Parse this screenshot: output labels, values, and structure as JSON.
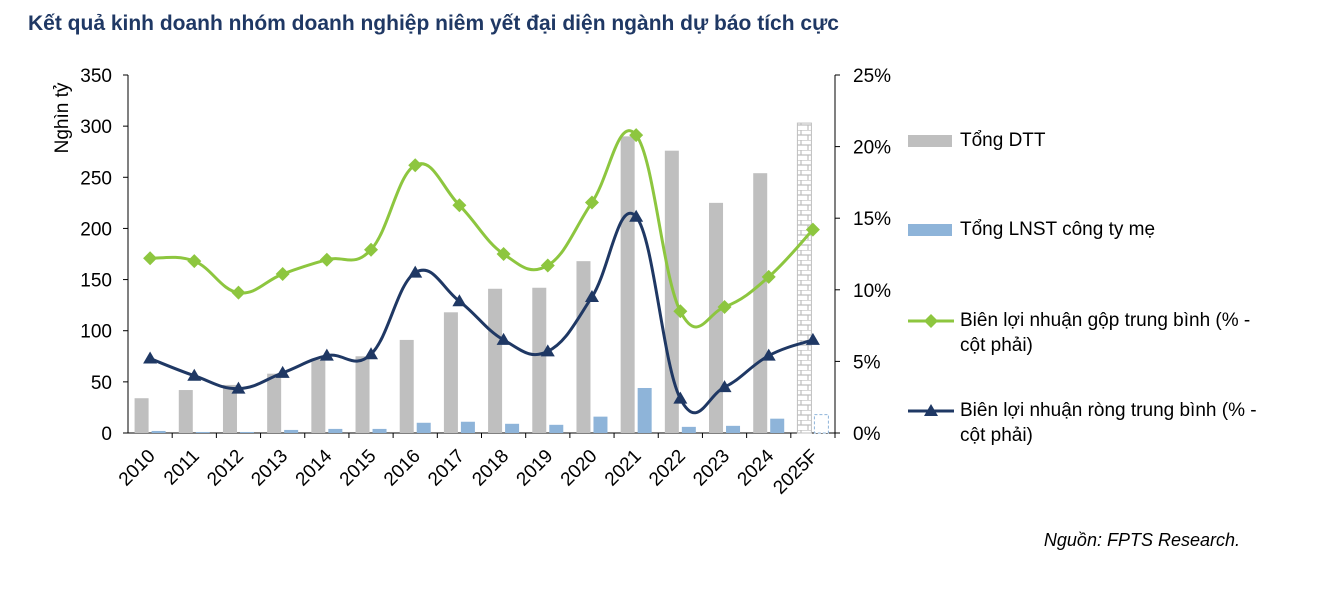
{
  "chart_data": {
    "type": "bar-line",
    "title": "Kết quả kinh doanh nhóm doanh nghiệp niêm yết đại diện ngành dự báo tích cực",
    "source": "Nguồn: FPTS Research.",
    "y_label": "Nghìn tỷ",
    "categories": [
      "2010",
      "2011",
      "2012",
      "2013",
      "2014",
      "2015",
      "2016",
      "2017",
      "2018",
      "2019",
      "2020",
      "2021",
      "2022",
      "2023",
      "2024",
      "2025F"
    ],
    "ylim": [
      0,
      350
    ],
    "yticks": [
      0,
      50,
      100,
      150,
      200,
      250,
      300,
      350
    ],
    "y2lim": [
      0,
      25
    ],
    "y2ticks": [
      {
        "value": 0,
        "label": "0%"
      },
      {
        "value": 5,
        "label": "5%"
      },
      {
        "value": 10,
        "label": "10%"
      },
      {
        "value": 15,
        "label": "15%"
      },
      {
        "value": 20,
        "label": "20%"
      },
      {
        "value": 25,
        "label": "25%"
      }
    ],
    "series": [
      {
        "name": "Tổng DTT",
        "kind": "bar",
        "color": "#bfbfbf",
        "values": [
          34,
          42,
          47,
          58,
          72,
          75,
          91,
          118,
          141,
          142,
          168,
          290,
          276,
          225,
          254,
          303
        ]
      },
      {
        "name": "Tổng LNST công ty mẹ",
        "kind": "bar",
        "color": "#8eb4d9",
        "values": [
          2,
          1,
          1,
          3,
          4,
          4,
          10,
          11,
          9,
          8,
          16,
          44,
          6,
          7,
          14,
          18
        ]
      },
      {
        "name": "Biên lợi nhuận gộp trung bình (% - cột phải)",
        "kind": "line",
        "marker": "diamond",
        "axis": "y2",
        "color": "#8dc63f",
        "values": [
          12.2,
          12.0,
          9.8,
          11.1,
          12.1,
          12.8,
          18.7,
          15.9,
          12.5,
          11.7,
          16.1,
          20.8,
          8.5,
          8.8,
          10.9,
          14.2
        ]
      },
      {
        "name": "Biên lợi nhuận ròng trung bình (% - cột phải)",
        "kind": "line",
        "marker": "triangle",
        "axis": "y2",
        "color": "#1f3864",
        "values": [
          5.2,
          4.0,
          3.1,
          4.2,
          5.4,
          5.5,
          11.2,
          9.2,
          6.5,
          5.7,
          9.5,
          15.1,
          2.4,
          3.2,
          5.4,
          6.5
        ]
      }
    ]
  }
}
